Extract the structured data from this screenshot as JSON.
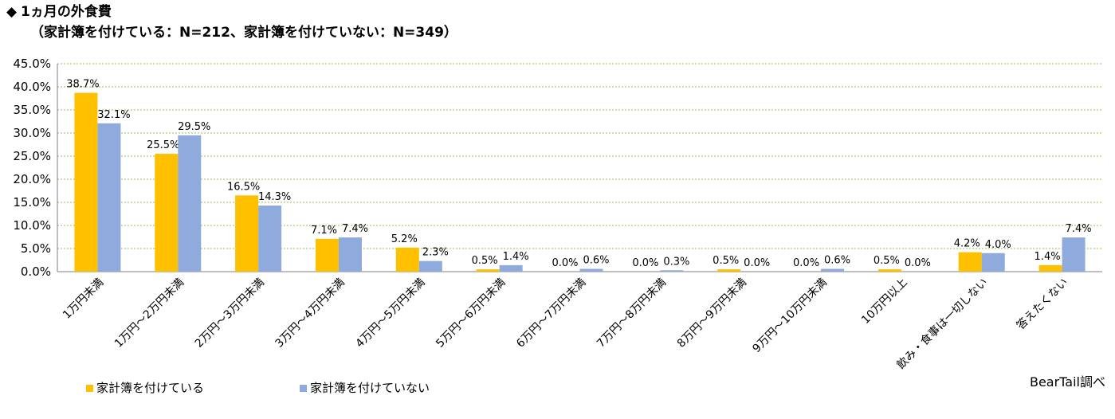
{
  "header": {
    "marker": "◆",
    "title": "1ヵ月の外食費",
    "subtitle": "（家計簿を付けている：N=212、家計簿を付けていない：N=349）"
  },
  "credit": "BearTail調べ",
  "colors": {
    "series1": "#FFC000",
    "series2": "#8FAADC",
    "grid": "#9BBB59",
    "axis": "#7F7F7F"
  },
  "chart_data": {
    "type": "bar",
    "categories": [
      "1万円未満",
      "1万円～2万円未満",
      "2万円～3万円未満",
      "3万円～4万円未満",
      "4万円～5万円未満",
      "5万円～6万円未満",
      "6万円～7万円未満",
      "7万円～8万円未満",
      "8万円～9万円未満",
      "9万円～10万円未満",
      "10万円以上",
      "飲み・食事は一切しない",
      "答えたくない"
    ],
    "series": [
      {
        "name": "家計簿を付けている",
        "values": [
          38.7,
          25.5,
          16.5,
          7.1,
          5.2,
          0.5,
          0.0,
          0.0,
          0.5,
          0.0,
          0.5,
          4.2,
          1.4
        ]
      },
      {
        "name": "家計簿を付けていない",
        "values": [
          32.1,
          29.5,
          14.3,
          7.4,
          2.3,
          1.4,
          0.6,
          0.3,
          0.0,
          0.6,
          0.0,
          4.0,
          7.4
        ]
      }
    ],
    "ylim": [
      0,
      45
    ],
    "yticks": [
      "0.0%",
      "5.0%",
      "10.0%",
      "15.0%",
      "20.0%",
      "25.0%",
      "30.0%",
      "35.0%",
      "40.0%",
      "45.0%"
    ],
    "value_unit": "%",
    "grid": true,
    "legend": "bottom-left"
  }
}
